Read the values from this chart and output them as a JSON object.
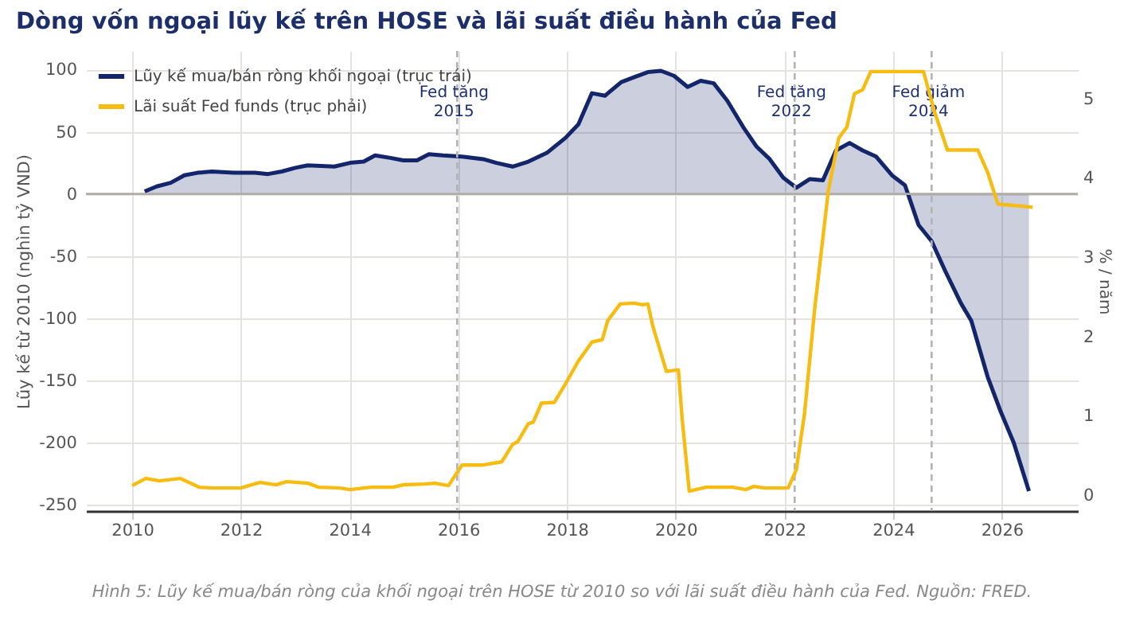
{
  "chart_data": {
    "type": "line",
    "title": "Dòng vốn ngoại lũy kế trên HOSE và lãi suất điều hành của Fed",
    "ylabel": "Lũy kế từ 2010 (nghìn tỷ VND)",
    "y2label": "% / năm",
    "xlim": [
      2009.15,
      2027.4
    ],
    "xticks": [
      2010,
      2012,
      2014,
      2016,
      2018,
      2020,
      2022,
      2024,
      2026
    ],
    "ylim": [
      -255,
      115
    ],
    "yticks": [
      -250,
      -200,
      -150,
      -100,
      -50,
      0,
      50,
      100
    ],
    "y2lim": [
      -0.2,
      5.6
    ],
    "y2ticks": [
      0,
      1,
      2,
      3,
      4,
      5
    ],
    "grid": true,
    "legend": "top left",
    "line_style": "solid",
    "series": [
      {
        "name": "Lũy kế mua/bán ròng khối ngoại (trục trái)",
        "type": "area",
        "color": "#13266b",
        "x": [
          2010.23,
          2010.45,
          2010.71,
          2010.96,
          2011.2,
          2011.47,
          2011.87,
          2012.26,
          2012.5,
          2012.75,
          2013.0,
          2013.23,
          2013.72,
          2014.01,
          2014.26,
          2014.47,
          2014.75,
          2014.99,
          2015.24,
          2015.46,
          2015.72,
          2016.07,
          2016.46,
          2016.7,
          2017.0,
          2017.29,
          2017.63,
          2017.97,
          2018.21,
          2018.46,
          2018.7,
          2019.0,
          2019.24,
          2019.49,
          2019.73,
          2019.97,
          2020.22,
          2020.46,
          2020.7,
          2020.95,
          2021.24,
          2021.49,
          2021.73,
          2021.98,
          2022.22,
          2022.47,
          2022.71,
          2022.95,
          2023.2,
          2023.44,
          2023.69,
          2023.98,
          2024.22,
          2024.47,
          2024.71,
          2024.96,
          2025.25,
          2025.44,
          2025.74,
          2025.98,
          2026.22,
          2026.5
        ],
        "values": [
          2,
          6,
          9,
          15,
          17,
          18,
          17,
          17,
          16,
          18,
          21,
          23,
          22,
          25,
          26,
          31,
          29,
          27,
          27,
          32,
          31,
          30,
          28,
          25,
          22,
          26,
          33,
          45,
          56,
          81,
          79,
          90,
          94,
          98,
          99,
          95,
          86,
          91,
          89,
          75,
          54,
          38,
          28,
          13,
          5,
          12,
          11,
          35,
          41,
          35,
          30,
          15,
          7,
          -25,
          -38,
          -62,
          -88,
          -102,
          -147,
          -175,
          -200,
          -239
        ]
      },
      {
        "name": "Lãi suất Fed funds (trục phải)",
        "type": "line",
        "axis": "y2",
        "color": "#f7bc12",
        "x": [
          2010.0,
          2010.25,
          2010.5,
          2010.89,
          2011.23,
          2011.47,
          2011.77,
          2012.0,
          2012.35,
          2012.65,
          2012.84,
          2013.23,
          2013.43,
          2013.82,
          2014.01,
          2014.4,
          2014.8,
          2014.99,
          2015.38,
          2015.57,
          2015.82,
          2016.07,
          2016.46,
          2016.8,
          2017.0,
          2017.09,
          2017.29,
          2017.38,
          2017.53,
          2017.77,
          2017.97,
          2018.21,
          2018.46,
          2018.65,
          2018.75,
          2018.98,
          2019.24,
          2019.39,
          2019.49,
          2019.58,
          2019.83,
          2020.05,
          2020.12,
          2020.25,
          2020.56,
          2021.05,
          2021.29,
          2021.44,
          2021.63,
          2022.07,
          2022.22,
          2022.37,
          2022.56,
          2022.81,
          2023.0,
          2023.15,
          2023.29,
          2023.44,
          2023.59,
          2024.56,
          2024.76,
          2025.0,
          2025.56,
          2025.74,
          2025.93,
          2026.57
        ],
        "values": [
          0.12,
          0.21,
          0.18,
          0.21,
          0.1,
          0.09,
          0.09,
          0.09,
          0.16,
          0.13,
          0.17,
          0.15,
          0.1,
          0.09,
          0.07,
          0.1,
          0.1,
          0.13,
          0.14,
          0.15,
          0.12,
          0.38,
          0.38,
          0.42,
          0.64,
          0.67,
          0.9,
          0.92,
          1.16,
          1.17,
          1.4,
          1.69,
          1.93,
          1.96,
          2.2,
          2.41,
          2.42,
          2.4,
          2.41,
          2.13,
          1.56,
          1.58,
          0.96,
          0.05,
          0.1,
          0.1,
          0.07,
          0.11,
          0.09,
          0.09,
          0.32,
          1.02,
          2.36,
          3.84,
          4.5,
          4.64,
          5.06,
          5.11,
          5.34,
          5.34,
          4.84,
          4.35,
          4.35,
          4.07,
          3.67,
          3.63
        ]
      }
    ],
    "ref_lines": [
      {
        "axis": "y",
        "value": 0,
        "color": "#b0aca6",
        "line_style": "solid"
      },
      {
        "axis": "x",
        "value": 2015.98,
        "label": "Fed tăng\n2015",
        "color": "#b3b3b3",
        "line_style": "dashed"
      },
      {
        "axis": "x",
        "value": 2022.19,
        "label": "Fed tăng\n2022",
        "color": "#b3b3b3",
        "line_style": "dashed"
      },
      {
        "axis": "x",
        "value": 2024.71,
        "label": "Fed giảm\n2024",
        "color": "#b3b3b3",
        "line_style": "dashed"
      }
    ],
    "annotations": [
      "Hình 5: Lũy kế mua/bán ròng của khối ngoại trên HOSE từ 2010 so với lãi suất điều hành của Fed. Nguồn: FRED."
    ]
  }
}
